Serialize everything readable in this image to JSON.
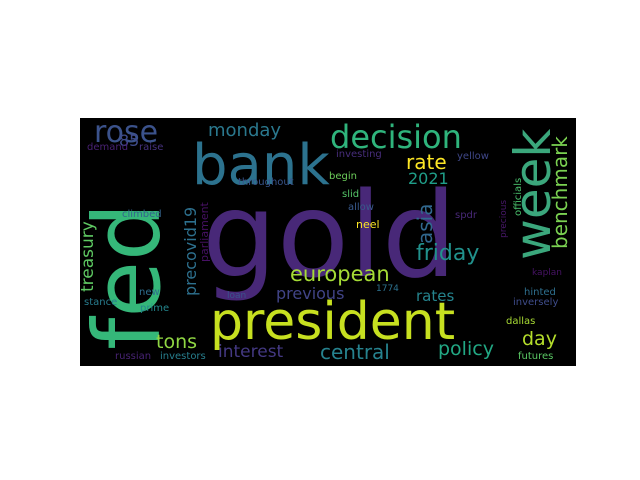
{
  "words": [
    {
      "text": "fed",
      "color": "#35b779"
    },
    {
      "text": "gold",
      "color": "#482878"
    },
    {
      "text": "president",
      "color": "#c7e020"
    },
    {
      "text": "bank",
      "color": "#2c728e"
    },
    {
      "text": "week",
      "color": "#3ba77c"
    },
    {
      "text": "decision",
      "color": "#2fb47c"
    },
    {
      "text": "rose",
      "color": "#3b528b"
    },
    {
      "text": "benchmark",
      "color": "#7ad151"
    },
    {
      "text": "friday",
      "color": "#21918c"
    },
    {
      "text": "european",
      "color": "#a5db36"
    },
    {
      "text": "rate",
      "color": "#fde725"
    },
    {
      "text": "monday",
      "color": "#2a788e"
    },
    {
      "text": "treasury",
      "color": "#5ec962"
    },
    {
      "text": "asia",
      "color": "#31688e"
    },
    {
      "text": "central",
      "color": "#26828e"
    },
    {
      "text": "day",
      "color": "#b5de2b"
    },
    {
      "text": "policy",
      "color": "#22a884"
    },
    {
      "text": "precovid19",
      "color": "#2d708e"
    },
    {
      "text": "tons",
      "color": "#90d743"
    },
    {
      "text": "interest",
      "color": "#443983"
    },
    {
      "text": "previous",
      "color": "#414487"
    },
    {
      "text": "2021",
      "color": "#1f9e89"
    },
    {
      "text": "rates",
      "color": "#25848e"
    },
    {
      "text": "85",
      "color": "#3e4a89"
    },
    {
      "text": "investing",
      "color": "#472d7b"
    },
    {
      "text": "yellow",
      "color": "#3f4788"
    },
    {
      "text": "raise",
      "color": "#46327e"
    },
    {
      "text": "demand",
      "color": "#482173"
    },
    {
      "text": "throughout",
      "color": "#39558c"
    },
    {
      "text": "begin",
      "color": "#6ccd5a"
    },
    {
      "text": "slid",
      "color": "#54c568"
    },
    {
      "text": "allow",
      "color": "#38598c"
    },
    {
      "text": "neel",
      "color": "#fde725"
    },
    {
      "text": "climbed",
      "color": "#33638d"
    },
    {
      "text": "parliament",
      "color": "#471164"
    },
    {
      "text": "officials",
      "color": "#4ac16d"
    },
    {
      "text": "spdr",
      "color": "#482878"
    },
    {
      "text": "precious",
      "color": "#48186a"
    },
    {
      "text": "kaplan",
      "color": "#471365"
    },
    {
      "text": "new",
      "color": "#2e6e8e"
    },
    {
      "text": "loan",
      "color": "#3a548c"
    },
    {
      "text": "stance",
      "color": "#287c8e"
    },
    {
      "text": "hinted",
      "color": "#2e6f8e"
    },
    {
      "text": "1774",
      "color": "#2c718e"
    },
    {
      "text": "prime",
      "color": "#24878e"
    },
    {
      "text": "inversely",
      "color": "#3e4c8a"
    },
    {
      "text": "dallas",
      "color": "#a8db34"
    },
    {
      "text": "russian",
      "color": "#482374"
    },
    {
      "text": "investors",
      "color": "#277f8e"
    },
    {
      "text": "futures",
      "color": "#5ac864"
    }
  ]
}
